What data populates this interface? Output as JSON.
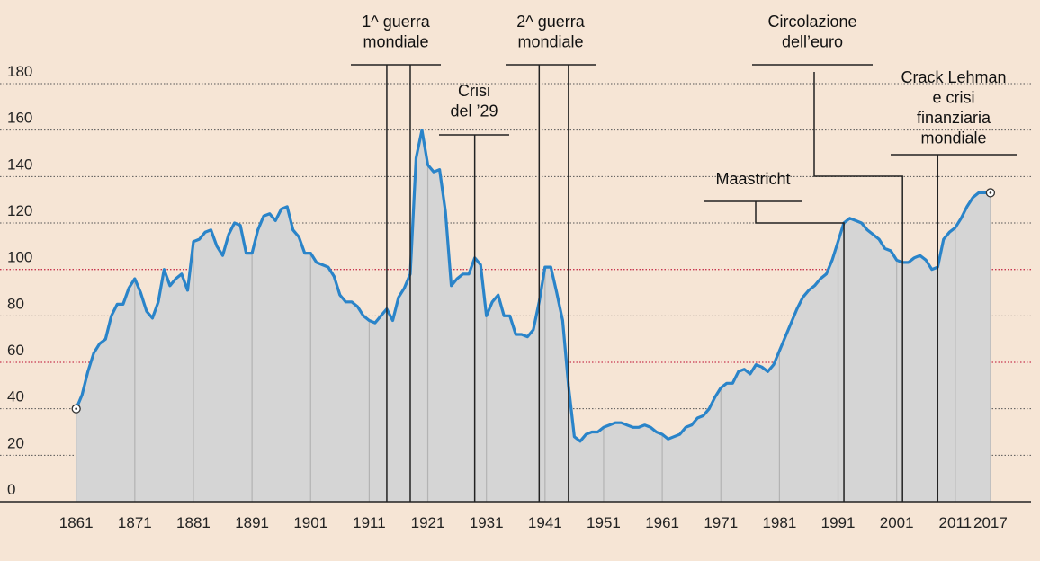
{
  "chart_data": {
    "type": "area",
    "x": [
      1861,
      1862,
      1863,
      1864,
      1865,
      1866,
      1867,
      1868,
      1869,
      1870,
      1871,
      1872,
      1873,
      1874,
      1875,
      1876,
      1877,
      1878,
      1879,
      1880,
      1881,
      1882,
      1883,
      1884,
      1885,
      1886,
      1887,
      1888,
      1889,
      1890,
      1891,
      1892,
      1893,
      1894,
      1895,
      1896,
      1897,
      1898,
      1899,
      1900,
      1901,
      1902,
      1903,
      1904,
      1905,
      1906,
      1907,
      1908,
      1909,
      1910,
      1911,
      1912,
      1913,
      1914,
      1915,
      1916,
      1917,
      1918,
      1919,
      1920,
      1921,
      1922,
      1923,
      1924,
      1925,
      1926,
      1927,
      1928,
      1929,
      1930,
      1931,
      1932,
      1933,
      1934,
      1935,
      1936,
      1937,
      1938,
      1939,
      1940,
      1941,
      1942,
      1943,
      1944,
      1945,
      1946,
      1947,
      1948,
      1949,
      1950,
      1951,
      1952,
      1953,
      1954,
      1955,
      1956,
      1957,
      1958,
      1959,
      1960,
      1961,
      1962,
      1963,
      1964,
      1965,
      1966,
      1967,
      1968,
      1969,
      1970,
      1971,
      1972,
      1973,
      1974,
      1975,
      1976,
      1977,
      1978,
      1979,
      1980,
      1981,
      1982,
      1983,
      1984,
      1985,
      1986,
      1987,
      1988,
      1989,
      1990,
      1991,
      1992,
      1993,
      1994,
      1995,
      1996,
      1997,
      1998,
      1999,
      2000,
      2001,
      2002,
      2003,
      2004,
      2005,
      2006,
      2007,
      2008,
      2009,
      2010,
      2011,
      2012,
      2013,
      2014,
      2015,
      2016,
      2017
    ],
    "values": [
      40,
      46,
      56,
      64,
      68,
      70,
      80,
      85,
      85,
      92,
      96,
      90,
      82,
      79,
      86,
      100,
      93,
      96,
      98,
      91,
      112,
      113,
      116,
      117,
      110,
      106,
      115,
      120,
      119,
      107,
      107,
      117,
      123,
      124,
      121,
      126,
      127,
      117,
      114,
      107,
      107,
      103,
      102,
      101,
      97,
      89,
      86,
      86,
      84,
      80,
      78,
      77,
      80,
      83,
      78,
      88,
      92,
      98,
      148,
      160,
      145,
      142,
      143,
      125,
      93,
      96,
      98,
      98,
      105,
      102,
      80,
      86,
      89,
      80,
      80,
      72,
      72,
      71,
      74,
      86,
      101,
      101,
      90,
      78,
      50,
      28,
      26,
      29,
      30,
      30,
      32,
      33,
      34,
      34,
      33,
      32,
      32,
      33,
      32,
      30,
      29,
      27,
      28,
      29,
      32,
      33,
      36,
      37,
      40,
      45,
      49,
      51,
      51,
      56,
      57,
      55,
      59,
      58,
      56,
      59,
      65,
      71,
      77,
      83,
      88,
      91,
      93,
      96,
      98,
      104,
      112,
      120,
      122,
      121,
      120,
      117,
      115,
      113,
      109,
      108,
      104,
      103,
      103,
      105,
      106,
      104,
      100,
      101,
      113,
      116,
      118,
      122,
      127,
      131,
      133,
      133,
      133
    ],
    "color": "#2a84c9",
    "fill": "#d5d5d5",
    "xlim": [
      1848,
      2024
    ],
    "xticks": [
      1861,
      1871,
      1881,
      1891,
      1901,
      1911,
      1921,
      1931,
      1941,
      1951,
      1961,
      1971,
      1981,
      1991,
      2001,
      2011,
      2017
    ],
    "ylim": [
      0,
      180
    ],
    "yticks": [
      0,
      20,
      40,
      60,
      80,
      100,
      120,
      140,
      160,
      180
    ],
    "grid": true,
    "highlight_yticks": [
      60,
      100
    ],
    "highlight_color": "#c8364f",
    "annotations": [
      {
        "label": [
          "1^ guerra",
          "mondiale"
        ],
        "years": [
          1914,
          1918
        ]
      },
      {
        "label": [
          "Crisi",
          "del ’29"
        ],
        "years": [
          1929
        ]
      },
      {
        "label": [
          "2^ guerra",
          "mondiale"
        ],
        "years": [
          1940,
          1945
        ]
      },
      {
        "label": [
          "Maastricht"
        ],
        "years": [
          1992
        ]
      },
      {
        "label": [
          "Circolazione",
          "dell’euro"
        ],
        "years": [
          2002
        ]
      },
      {
        "label": [
          "Crack Lehman",
          "e crisi",
          "finanziaria",
          "mondiale"
        ],
        "years": [
          2008
        ]
      }
    ]
  }
}
